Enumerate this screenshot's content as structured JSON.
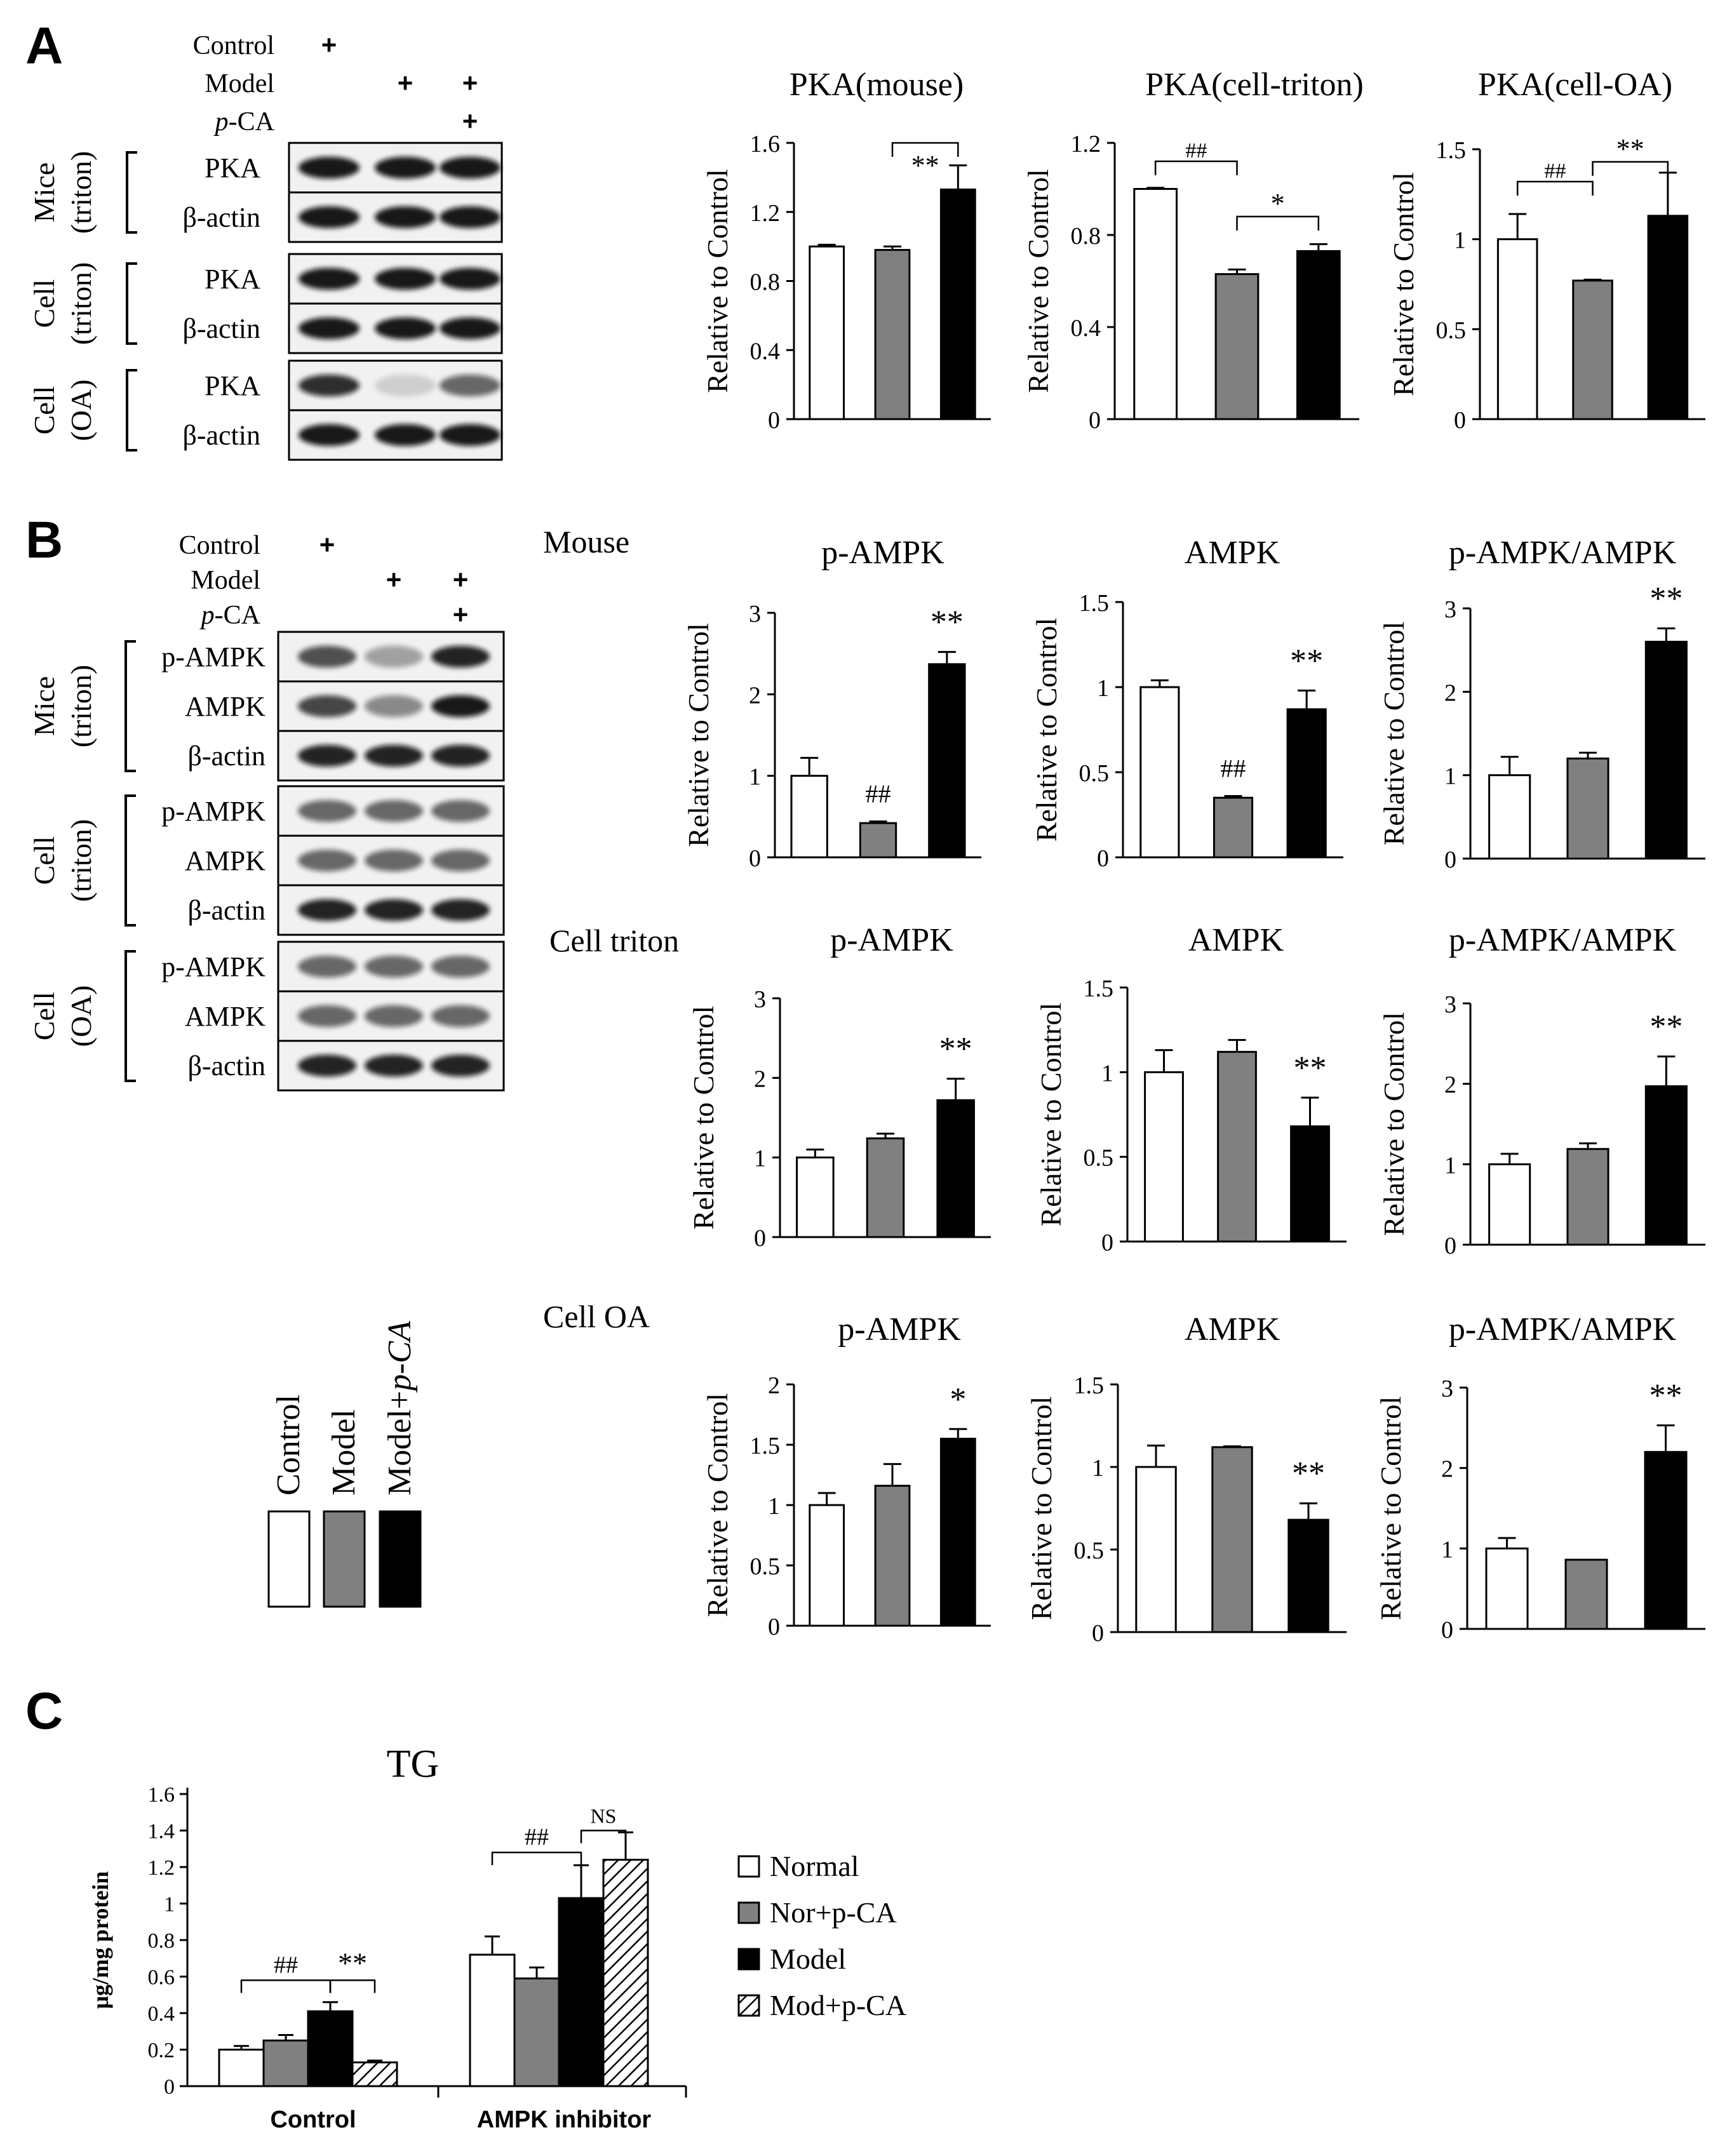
{
  "panels": {
    "A": {
      "letter": "A"
    },
    "B": {
      "letter": "B"
    },
    "C": {
      "letter": "C"
    }
  },
  "blots": {
    "A": {
      "treatments": [
        {
          "label": "Control",
          "marks": [
            "+",
            "",
            ""
          ],
          "color": "#000000",
          "italic_prefix": ""
        },
        {
          "label": "Model",
          "marks": [
            "",
            "+",
            "+"
          ],
          "color": "#e8202a",
          "italic_prefix": ""
        },
        {
          "label": "-CA",
          "marks": [
            "",
            "",
            "+"
          ],
          "color": "#000000",
          "italic_prefix": "p"
        }
      ],
      "groups": [
        {
          "label_line1": "Mice",
          "label_line2": "(triton)",
          "rows": [
            "PKA",
            "β-actin"
          ]
        },
        {
          "label_line1": "Cell",
          "label_line2": "(triton)",
          "rows": [
            "PKA",
            "β-actin"
          ]
        },
        {
          "label_line1": "Cell",
          "label_line2": "(OA)",
          "rows": [
            "PKA",
            "β-actin"
          ]
        }
      ]
    },
    "B": {
      "treatments": [
        {
          "label": "Control",
          "marks": [
            "+",
            "",
            ""
          ],
          "color": "#000000",
          "italic_prefix": ""
        },
        {
          "label": "Model",
          "marks": [
            "",
            "+",
            "+"
          ],
          "color": "#e8202a",
          "italic_prefix": ""
        },
        {
          "label": "-CA",
          "marks": [
            "",
            "",
            "+"
          ],
          "color": "#000000",
          "italic_prefix": "p"
        }
      ],
      "groups": [
        {
          "label_line1": "Mice",
          "label_line2": "(triton)",
          "rows": [
            "p-AMPK",
            "AMPK",
            "β-actin"
          ]
        },
        {
          "label_line1": "Cell",
          "label_line2": "(triton)",
          "rows": [
            "p-AMPK",
            "AMPK",
            "β-actin"
          ]
        },
        {
          "label_line1": "Cell",
          "label_line2": "(OA)",
          "rows": [
            "p-AMPK",
            "AMPK",
            "β-actin"
          ]
        }
      ]
    }
  },
  "row_labels_B": [
    "Mouse",
    "Cell triton",
    "Cell OA"
  ],
  "legend_B": [
    {
      "label": "Control",
      "fill": "#ffffff"
    },
    {
      "label": "Model",
      "fill": "#808080"
    },
    {
      "label": "Model+",
      "italic_suffix": "p-CA",
      "fill": "#000000"
    }
  ],
  "colors": {
    "control": "#ffffff",
    "model": "#808080",
    "treated": "#000000",
    "accent_red": "#e8202a"
  },
  "chart_data": [
    {
      "id": "A1",
      "type": "bar",
      "title": "PKA(mouse)",
      "ylabel": "Relative to Control",
      "xlabel": "",
      "categories": [
        "Control",
        "Model",
        "Model+p-CA"
      ],
      "values": [
        1.0,
        0.98,
        1.33
      ],
      "errors": [
        0.01,
        0.02,
        0.14
      ],
      "ylim": [
        0,
        1.6
      ],
      "yticks": [
        0,
        0.4,
        0.8,
        1.2,
        1.6
      ],
      "ytick_labels": [
        "0",
        "0.4",
        "0.8",
        "1.2",
        "1.6"
      ],
      "annotations": [
        {
          "text": "**",
          "type": "bracket",
          "from": 1,
          "to": 2
        }
      ]
    },
    {
      "id": "A2",
      "type": "bar",
      "title": "PKA(cell-triton)",
      "ylabel": "Relative to Control",
      "xlabel": "",
      "categories": [
        "Control",
        "Model",
        "Model+p-CA"
      ],
      "values": [
        1.0,
        0.63,
        0.73
      ],
      "errors": [
        0.005,
        0.02,
        0.03
      ],
      "ylim": [
        0,
        1.2
      ],
      "yticks": [
        0,
        0.4,
        0.8,
        1.2
      ],
      "ytick_labels": [
        "0",
        "0.4",
        "0.8",
        "1.2"
      ],
      "annotations": [
        {
          "text": "##",
          "type": "bracket",
          "from": 0,
          "to": 1
        },
        {
          "text": "*",
          "type": "bracket",
          "from": 1,
          "to": 2
        }
      ]
    },
    {
      "id": "A3",
      "type": "bar",
      "title": "PKA(cell-OA)",
      "ylabel": "Relative to Control",
      "xlabel": "",
      "categories": [
        "Control",
        "Model",
        "Model+p-CA"
      ],
      "values": [
        1.0,
        0.77,
        1.13
      ],
      "errors": [
        0.14,
        0.005,
        0.24
      ],
      "ylim": [
        0,
        1.5
      ],
      "yticks": [
        0,
        0.5,
        1,
        1.5
      ],
      "ytick_labels": [
        "0",
        "0.5",
        "1",
        "1.5"
      ],
      "annotations": [
        {
          "text": "##",
          "type": "bracket",
          "from": 0,
          "to": 1
        },
        {
          "text": "**",
          "type": "bracket",
          "from": 1,
          "to": 2
        }
      ]
    },
    {
      "id": "B1",
      "type": "bar",
      "title": "p-AMPK",
      "ylabel": "Relative to Control",
      "xlabel": "",
      "categories": [
        "Control",
        "Model",
        "Model+p-CA"
      ],
      "values": [
        1.0,
        0.42,
        2.37
      ],
      "errors": [
        0.22,
        0.02,
        0.15
      ],
      "ylim": [
        0,
        3
      ],
      "yticks": [
        0,
        1,
        2,
        3
      ],
      "ytick_labels": [
        "0",
        "1",
        "2",
        "3"
      ],
      "annotations": [
        {
          "text": "##",
          "type": "bar",
          "index": 1
        },
        {
          "text": "**",
          "type": "bar",
          "index": 2
        }
      ]
    },
    {
      "id": "B2",
      "type": "bar",
      "title": "AMPK",
      "ylabel": "Relative to Control",
      "xlabel": "",
      "categories": [
        "Control",
        "Model",
        "Model+p-CA"
      ],
      "values": [
        1.0,
        0.35,
        0.87
      ],
      "errors": [
        0.04,
        0.01,
        0.11
      ],
      "ylim": [
        0,
        1.5
      ],
      "yticks": [
        0,
        0.5,
        1,
        1.5
      ],
      "ytick_labels": [
        "0",
        "0.5",
        "1",
        "1.5"
      ],
      "annotations": [
        {
          "text": "##",
          "type": "bar",
          "index": 1
        },
        {
          "text": "**",
          "type": "bar",
          "index": 2
        }
      ]
    },
    {
      "id": "B3",
      "type": "bar",
      "title": "p-AMPK/AMPK",
      "ylabel": "Relative to Control",
      "xlabel": "",
      "categories": [
        "Control",
        "Model",
        "Model+p-CA"
      ],
      "values": [
        1.0,
        1.2,
        2.6
      ],
      "errors": [
        0.22,
        0.07,
        0.16
      ],
      "ylim": [
        0,
        3
      ],
      "yticks": [
        0,
        1,
        2,
        3
      ],
      "ytick_labels": [
        "0",
        "1",
        "2",
        "3"
      ],
      "annotations": [
        {
          "text": "**",
          "type": "bar",
          "index": 2
        }
      ]
    },
    {
      "id": "B4",
      "type": "bar",
      "title": "p-AMPK",
      "ylabel": "Relative to Control",
      "xlabel": "",
      "categories": [
        "Control",
        "Model",
        "Model+p-CA"
      ],
      "values": [
        1.0,
        1.24,
        1.72
      ],
      "errors": [
        0.1,
        0.06,
        0.27
      ],
      "ylim": [
        0,
        3
      ],
      "yticks": [
        0,
        1,
        2,
        3
      ],
      "ytick_labels": [
        "0",
        "1",
        "2",
        "3"
      ],
      "annotations": [
        {
          "text": "**",
          "type": "bar",
          "index": 2
        }
      ]
    },
    {
      "id": "B5",
      "type": "bar",
      "title": "AMPK",
      "ylabel": "Relative to Control",
      "xlabel": "",
      "categories": [
        "Control",
        "Model",
        "Model+p-CA"
      ],
      "values": [
        1.0,
        1.12,
        0.68
      ],
      "errors": [
        0.13,
        0.07,
        0.17
      ],
      "ylim": [
        0,
        1.5
      ],
      "yticks": [
        0,
        0.5,
        1,
        1.5
      ],
      "ytick_labels": [
        "0",
        "0.5",
        "1",
        "1.5"
      ],
      "annotations": [
        {
          "text": "**",
          "type": "bar",
          "index": 2
        }
      ]
    },
    {
      "id": "B6",
      "type": "bar",
      "title": "p-AMPK/AMPK",
      "ylabel": "Relative to Control",
      "xlabel": "",
      "categories": [
        "Control",
        "Model",
        "Model+p-CA"
      ],
      "values": [
        1.0,
        1.19,
        1.97
      ],
      "errors": [
        0.13,
        0.07,
        0.37
      ],
      "ylim": [
        0,
        3
      ],
      "yticks": [
        0,
        1,
        2,
        3
      ],
      "ytick_labels": [
        "0",
        "1",
        "2",
        "3"
      ],
      "annotations": [
        {
          "text": "**",
          "type": "bar",
          "index": 2
        }
      ]
    },
    {
      "id": "B7",
      "type": "bar",
      "title": "p-AMPK",
      "ylabel": "Relative to Control",
      "xlabel": "",
      "categories": [
        "Control",
        "Model",
        "Model+p-CA"
      ],
      "values": [
        1.0,
        1.16,
        1.55
      ],
      "errors": [
        0.1,
        0.18,
        0.08
      ],
      "ylim": [
        0,
        2
      ],
      "yticks": [
        0,
        0.5,
        1,
        1.5,
        2
      ],
      "ytick_labels": [
        "0",
        "0.5",
        "1",
        "1.5",
        "2"
      ],
      "annotations": [
        {
          "text": "*",
          "type": "bar",
          "index": 2
        }
      ]
    },
    {
      "id": "B8",
      "type": "bar",
      "title": "AMPK",
      "ylabel": "Relative to Control",
      "xlabel": "",
      "categories": [
        "Control",
        "Model",
        "Model+p-CA"
      ],
      "values": [
        1.0,
        1.12,
        0.68
      ],
      "errors": [
        0.13,
        0.005,
        0.1
      ],
      "ylim": [
        0,
        1.5
      ],
      "yticks": [
        0,
        0.5,
        1,
        1.5
      ],
      "ytick_labels": [
        "0",
        "0.5",
        "1",
        "1.5"
      ],
      "annotations": [
        {
          "text": "**",
          "type": "bar",
          "index": 2
        }
      ]
    },
    {
      "id": "B9",
      "type": "bar",
      "title": "p-AMPK/AMPK",
      "ylabel": "Relative to Control",
      "xlabel": "",
      "categories": [
        "Control",
        "Model",
        "Model+p-CA"
      ],
      "values": [
        1.0,
        0.86,
        2.2
      ],
      "errors": [
        0.13,
        0.0,
        0.33
      ],
      "ylim": [
        0,
        3
      ],
      "yticks": [
        0,
        1,
        2,
        3
      ],
      "ytick_labels": [
        "0",
        "1",
        "2",
        "3"
      ],
      "annotations": [
        {
          "text": "**",
          "type": "bar",
          "index": 2
        }
      ]
    },
    {
      "id": "C",
      "type": "bar",
      "title": "TG",
      "ylabel": "μg/mg protein",
      "xlabel": "",
      "categories": [
        "Control",
        "AMPK inhibitor"
      ],
      "series": [
        {
          "name": "Normal",
          "values": [
            0.2,
            0.72
          ],
          "errors": [
            0.02,
            0.1
          ],
          "fill": "#ffffff"
        },
        {
          "name": "Nor+p-CA",
          "values": [
            0.25,
            0.59
          ],
          "errors": [
            0.03,
            0.06
          ],
          "fill": "#808080"
        },
        {
          "name": "Model",
          "values": [
            0.41,
            1.03
          ],
          "errors": [
            0.05,
            0.18
          ],
          "fill": "#000000"
        },
        {
          "name": "Mod+p-CA",
          "values": [
            0.13,
            1.24
          ],
          "errors": [
            0.01,
            0.15
          ],
          "fill": "hatch"
        }
      ],
      "ylim": [
        0,
        1.6
      ],
      "yticks": [
        0,
        0.2,
        0.4,
        0.6,
        0.8,
        1,
        1.2,
        1.4,
        1.6
      ],
      "ytick_labels": [
        "0",
        "0.2",
        "0.4",
        "0.6",
        "0.8",
        "1",
        "1.2",
        "1.4",
        "1.6"
      ],
      "legend_position": "right",
      "annotations": [
        {
          "text": "##",
          "type": "bracket",
          "group": 0,
          "from": 0,
          "to": 2
        },
        {
          "text": "**",
          "type": "bracket",
          "group": 0,
          "from": 2,
          "to": 3
        },
        {
          "text": "##",
          "type": "bracket",
          "group": 1,
          "from": 0,
          "to": 2
        },
        {
          "text": "NS",
          "type": "bracket",
          "group": 1,
          "from": 2,
          "to": 3
        }
      ]
    }
  ]
}
